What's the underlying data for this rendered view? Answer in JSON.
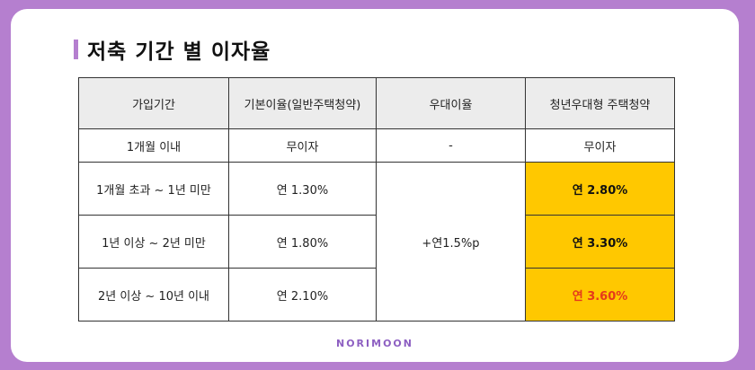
{
  "title": "저축 기간 별 이자율",
  "table": {
    "headers": [
      "가입기간",
      "기본이율(일반주택청약)",
      "우대이율",
      "청년우대형 주택청약"
    ],
    "rows": [
      {
        "period": "1개월 이내",
        "base": "무이자",
        "bonus": "-",
        "youth": "무이자"
      },
      {
        "period": "1개월 초과 ~ 1년 미만",
        "base": "연 1.30%",
        "youth": "연 2.80%"
      },
      {
        "period": "1년 이상 ~ 2년 미만",
        "base": "연 1.80%",
        "youth": "연 3.30%"
      },
      {
        "period": "2년 이상 ~ 10년 이내",
        "base": "연 2.10%",
        "youth": "연 3.60%"
      }
    ],
    "merged_bonus": "+연1.5%p"
  },
  "brand": "NORIMOON",
  "colors": {
    "frame": "#b57fcf",
    "highlight": "#ffc800",
    "highlight_red_text": "#e53a1b"
  }
}
